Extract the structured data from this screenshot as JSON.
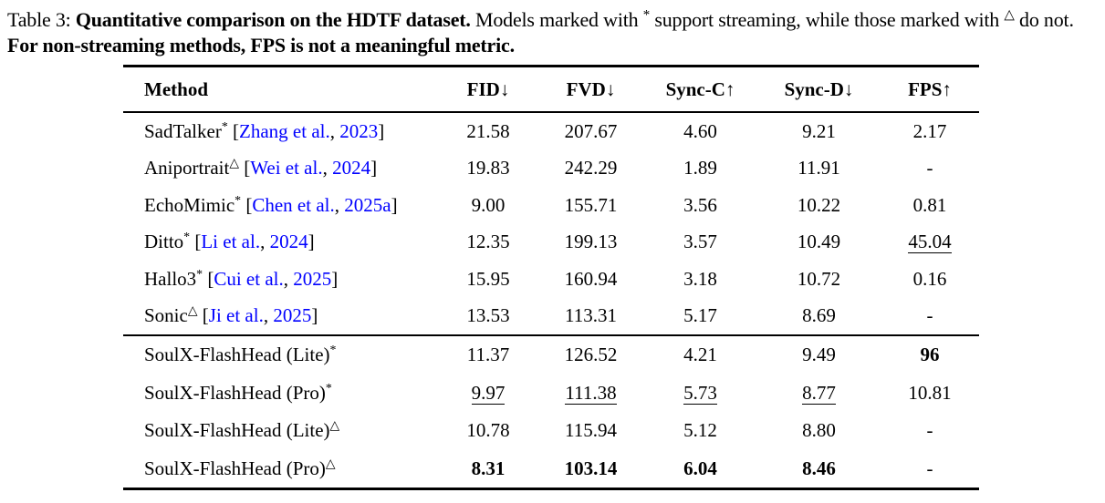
{
  "colors": {
    "link": "#0000FF",
    "text": "#000000",
    "background": "#ffffff"
  },
  "caption": {
    "prefix": "Table 3: ",
    "bold_lead": "Quantitative comparison on the HDTF dataset.",
    "seg1": " Models marked with ",
    "star_mark": "*",
    "seg2": " support streaming, while those marked with ",
    "triangle_mark": "△",
    "seg3": " do not. ",
    "bold_tail": "For non-streaming methods, FPS is not a meaningful metric."
  },
  "table": {
    "headers": [
      {
        "label": "Method",
        "arrow": ""
      },
      {
        "label": "FID",
        "arrow": "↓"
      },
      {
        "label": "FVD",
        "arrow": "↓"
      },
      {
        "label": "Sync-C",
        "arrow": "↑"
      },
      {
        "label": "Sync-D",
        "arrow": "↓"
      },
      {
        "label": "FPS",
        "arrow": "↑"
      }
    ],
    "groups": [
      {
        "rows": [
          {
            "method": "SadTalker",
            "mark": "*",
            "citation": {
              "authors": "Zhang et al.",
              "separator": ", ",
              "year": "2023"
            },
            "values": [
              {
                "v": "21.58",
                "style": ""
              },
              {
                "v": "207.67",
                "style": ""
              },
              {
                "v": "4.60",
                "style": ""
              },
              {
                "v": "9.21",
                "style": ""
              },
              {
                "v": "2.17",
                "style": ""
              }
            ]
          },
          {
            "method": "Aniportrait",
            "mark": "△",
            "citation": {
              "authors": "Wei et al.",
              "separator": ", ",
              "year": "2024"
            },
            "values": [
              {
                "v": "19.83",
                "style": ""
              },
              {
                "v": "242.29",
                "style": ""
              },
              {
                "v": "1.89",
                "style": ""
              },
              {
                "v": "11.91",
                "style": ""
              },
              {
                "v": "-",
                "style": ""
              }
            ]
          },
          {
            "method": "EchoMimic",
            "mark": "*",
            "citation": {
              "authors": "Chen et al.",
              "separator": ", ",
              "year": "2025a"
            },
            "values": [
              {
                "v": "9.00",
                "style": ""
              },
              {
                "v": "155.71",
                "style": ""
              },
              {
                "v": "3.56",
                "style": ""
              },
              {
                "v": "10.22",
                "style": ""
              },
              {
                "v": "0.81",
                "style": ""
              }
            ]
          },
          {
            "method": "Ditto",
            "mark": "*",
            "citation": {
              "authors": "Li et al.",
              "separator": ", ",
              "year": "2024"
            },
            "values": [
              {
                "v": "12.35",
                "style": ""
              },
              {
                "v": "199.13",
                "style": ""
              },
              {
                "v": "3.57",
                "style": ""
              },
              {
                "v": "10.49",
                "style": ""
              },
              {
                "v": "45.04",
                "style": "underline"
              }
            ]
          },
          {
            "method": "Hallo3",
            "mark": "*",
            "citation": {
              "authors": "Cui et al.",
              "separator": ", ",
              "year": "2025"
            },
            "values": [
              {
                "v": "15.95",
                "style": ""
              },
              {
                "v": "160.94",
                "style": ""
              },
              {
                "v": "3.18",
                "style": ""
              },
              {
                "v": "10.72",
                "style": ""
              },
              {
                "v": "0.16",
                "style": ""
              }
            ]
          },
          {
            "method": "Sonic",
            "mark": "△",
            "citation": {
              "authors": "Ji et al.",
              "separator": ", ",
              "year": "2025"
            },
            "values": [
              {
                "v": "13.53",
                "style": ""
              },
              {
                "v": "113.31",
                "style": ""
              },
              {
                "v": "5.17",
                "style": ""
              },
              {
                "v": "8.69",
                "style": ""
              },
              {
                "v": "-",
                "style": ""
              }
            ]
          }
        ]
      },
      {
        "rows": [
          {
            "method": "SoulX-FlashHead (Lite)",
            "mark": "*",
            "citation": null,
            "values": [
              {
                "v": "11.37",
                "style": ""
              },
              {
                "v": "126.52",
                "style": ""
              },
              {
                "v": "4.21",
                "style": ""
              },
              {
                "v": "9.49",
                "style": ""
              },
              {
                "v": "96",
                "style": "bold"
              }
            ]
          },
          {
            "method": "SoulX-FlashHead (Pro)",
            "mark": "*",
            "citation": null,
            "values": [
              {
                "v": "9.97",
                "style": "underline"
              },
              {
                "v": "111.38",
                "style": "underline"
              },
              {
                "v": "5.73",
                "style": "underline"
              },
              {
                "v": "8.77",
                "style": "underline"
              },
              {
                "v": "10.81",
                "style": ""
              }
            ]
          },
          {
            "method": "SoulX-FlashHead (Lite)",
            "mark": "△",
            "citation": null,
            "values": [
              {
                "v": "10.78",
                "style": ""
              },
              {
                "v": "115.94",
                "style": ""
              },
              {
                "v": "5.12",
                "style": ""
              },
              {
                "v": "8.80",
                "style": ""
              },
              {
                "v": "-",
                "style": ""
              }
            ]
          },
          {
            "method": "SoulX-FlashHead (Pro)",
            "mark": "△",
            "citation": null,
            "values": [
              {
                "v": "8.31",
                "style": "bold"
              },
              {
                "v": "103.14",
                "style": "bold"
              },
              {
                "v": "6.04",
                "style": "bold"
              },
              {
                "v": "8.46",
                "style": "bold"
              },
              {
                "v": "-",
                "style": ""
              }
            ]
          }
        ]
      }
    ]
  }
}
